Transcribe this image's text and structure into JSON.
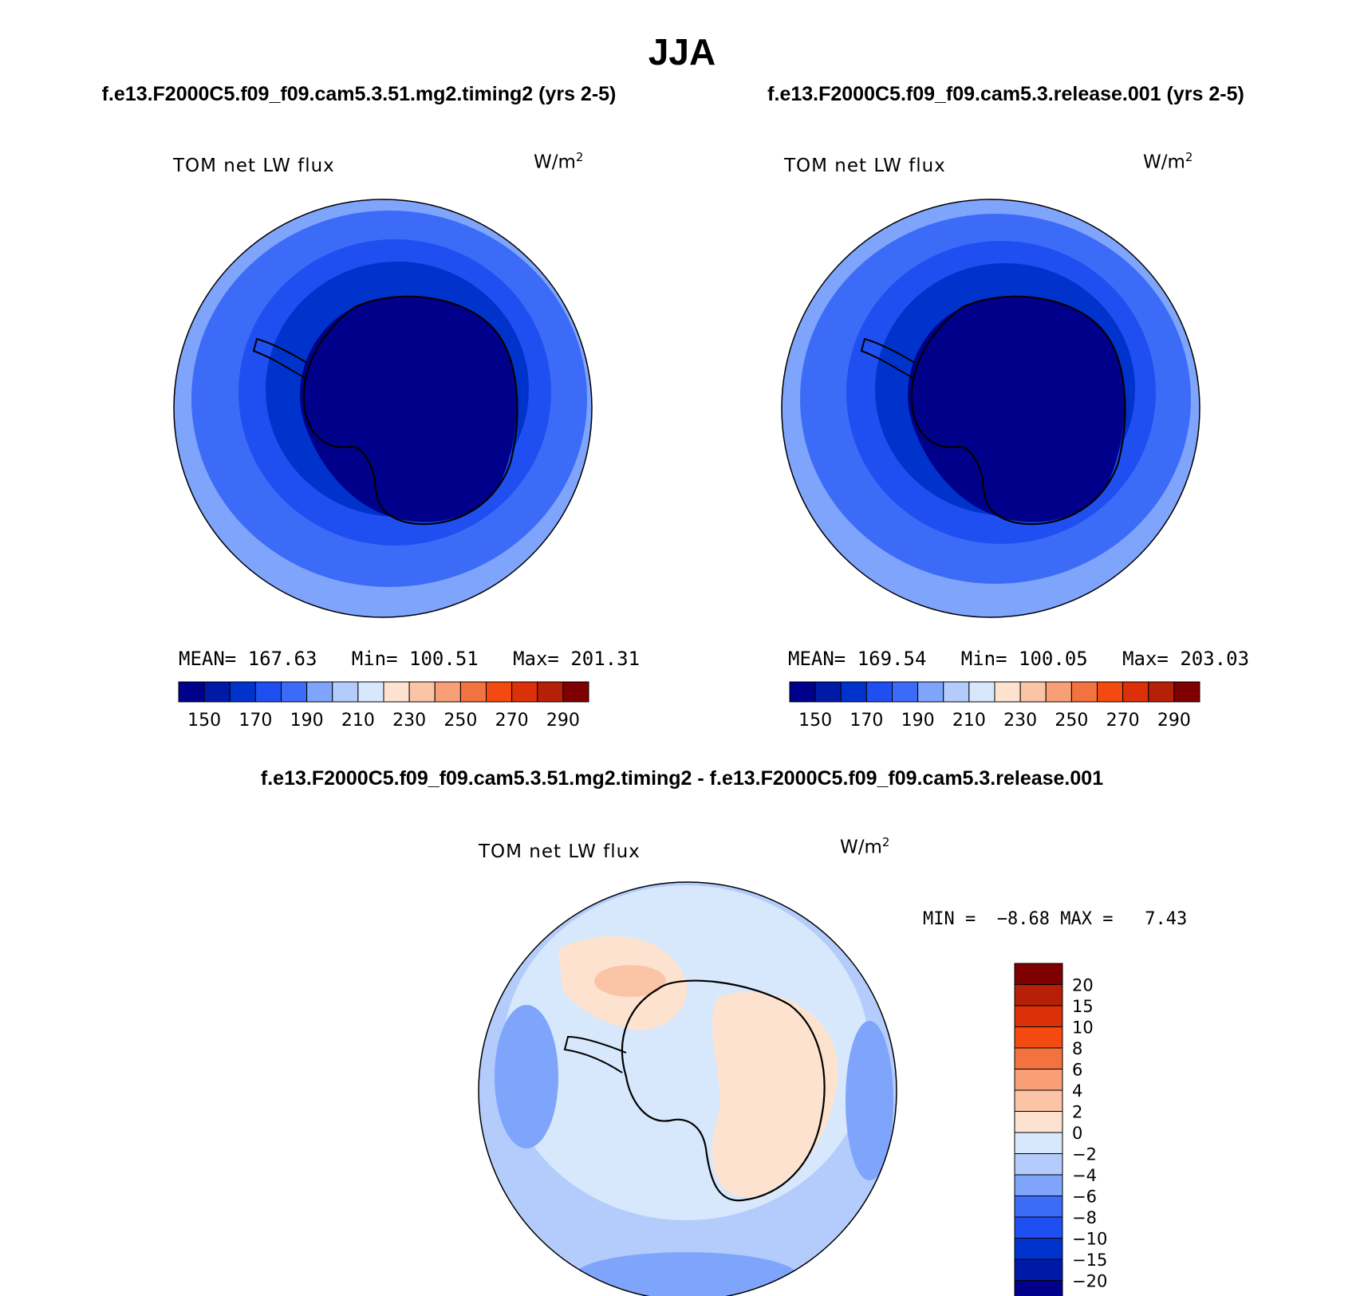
{
  "title": "JJA",
  "panels": [
    {
      "case_title": "f.e13.F2000C5.f09_f09.cam5.3.51.mg2.timing2 (yrs 2-5)",
      "field_label": "TOM net LW flux",
      "units": "W/m",
      "units_sup": "2",
      "stats": {
        "mean_label": "MEAN=",
        "mean": "167.63",
        "min_label": "Min=",
        "min": "100.51",
        "max_label": "Max=",
        "max": "201.31"
      }
    },
    {
      "case_title": "f.e13.F2000C5.f09_f09.cam5.3.release.001 (yrs 2-5)",
      "field_label": "TOM net LW flux",
      "units": "W/m",
      "units_sup": "2",
      "stats": {
        "mean_label": "MEAN=",
        "mean": "169.54",
        "min_label": "Min=",
        "min": "100.05",
        "max_label": "Max=",
        "max": "203.03"
      }
    }
  ],
  "main_colorbar": {
    "labels": [
      "150",
      "170",
      "190",
      "210",
      "230",
      "250",
      "270",
      "290"
    ],
    "colors": [
      "#00008b",
      "#001aa8",
      "#0033cc",
      "#1f4ff0",
      "#3c6cf7",
      "#7fa4fb",
      "#b3ccfc",
      "#d7e7fc",
      "#fde3cf",
      "#fbc4a6",
      "#f89f77",
      "#f2733f",
      "#f24a10",
      "#db3008",
      "#b52006",
      "#7f0000"
    ]
  },
  "diff_panel": {
    "case_title": "f.e13.F2000C5.f09_f09.cam5.3.51.mg2.timing2 - f.e13.F2000C5.f09_f09.cam5.3.release.001",
    "field_label": "TOM net LW flux",
    "units": "W/m",
    "units_sup": "2",
    "min_label": "MIN =",
    "min": "−8.68",
    "max_label": "MAX =",
    "max": "7.43"
  },
  "diff_colorbar": {
    "labels": [
      "20",
      "15",
      "10",
      "8",
      "6",
      "4",
      "2",
      "0",
      "−2",
      "−4",
      "−6",
      "−8",
      "−10",
      "−15",
      "−20"
    ],
    "colors": [
      "#7f0000",
      "#b52006",
      "#db3008",
      "#f24a10",
      "#f2733f",
      "#f89f77",
      "#fbc4a6",
      "#fde3cf",
      "#d7e7fc",
      "#b3ccfc",
      "#7fa4fb",
      "#3c6cf7",
      "#1f4ff0",
      "#0033cc",
      "#001aa8",
      "#00008b"
    ]
  }
}
